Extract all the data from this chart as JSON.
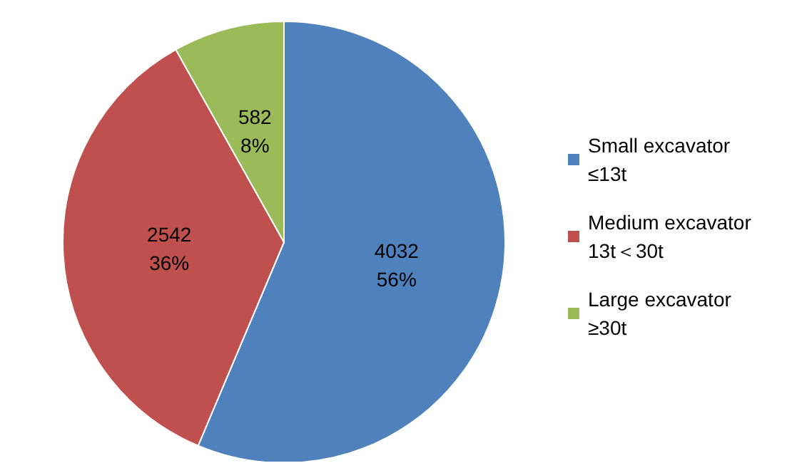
{
  "chart_data": {
    "type": "pie",
    "categories": [
      "Small excavator ≤13t",
      "Medium excavator 13t＜30t",
      "Large excavator ≥30t"
    ],
    "values": [
      4032,
      2542,
      582
    ],
    "colors": [
      "#4f81bd",
      "#c0504d",
      "#9bbb59"
    ],
    "value_labels": [
      "4032\n56%",
      "2542\n36%",
      "582\n8%"
    ],
    "legend": "right"
  }
}
